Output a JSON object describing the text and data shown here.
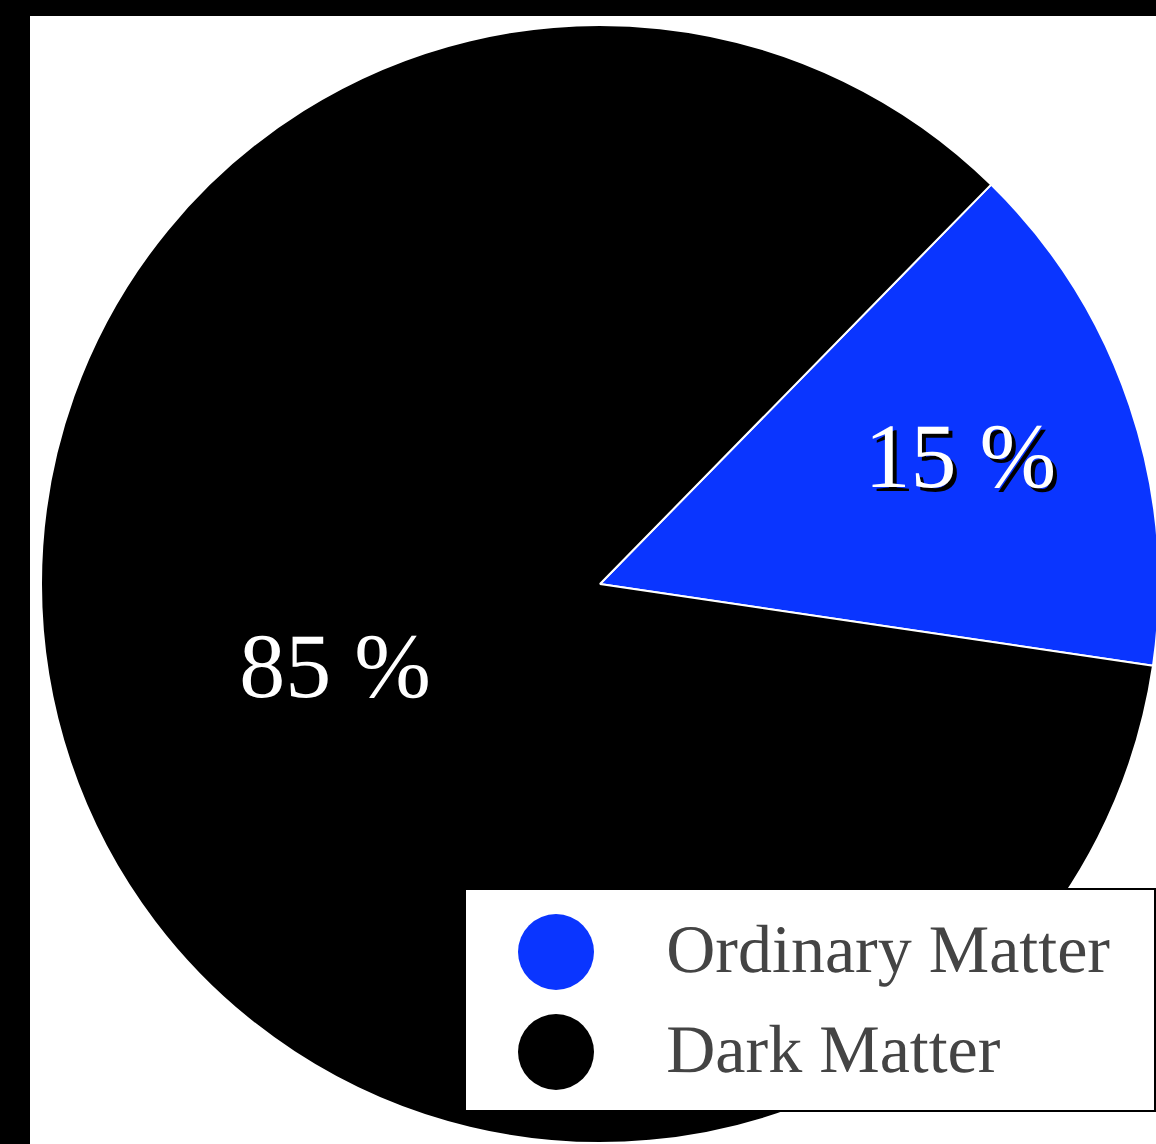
{
  "chart_data": {
    "type": "pie",
    "categories": [
      "Ordinary Matter",
      "Dark Matter"
    ],
    "values": [
      15,
      85
    ],
    "colors": [
      "#0a35ff",
      "#000000"
    ],
    "value_labels": [
      "15 %",
      "85 %"
    ],
    "legend": "bottom right"
  }
}
